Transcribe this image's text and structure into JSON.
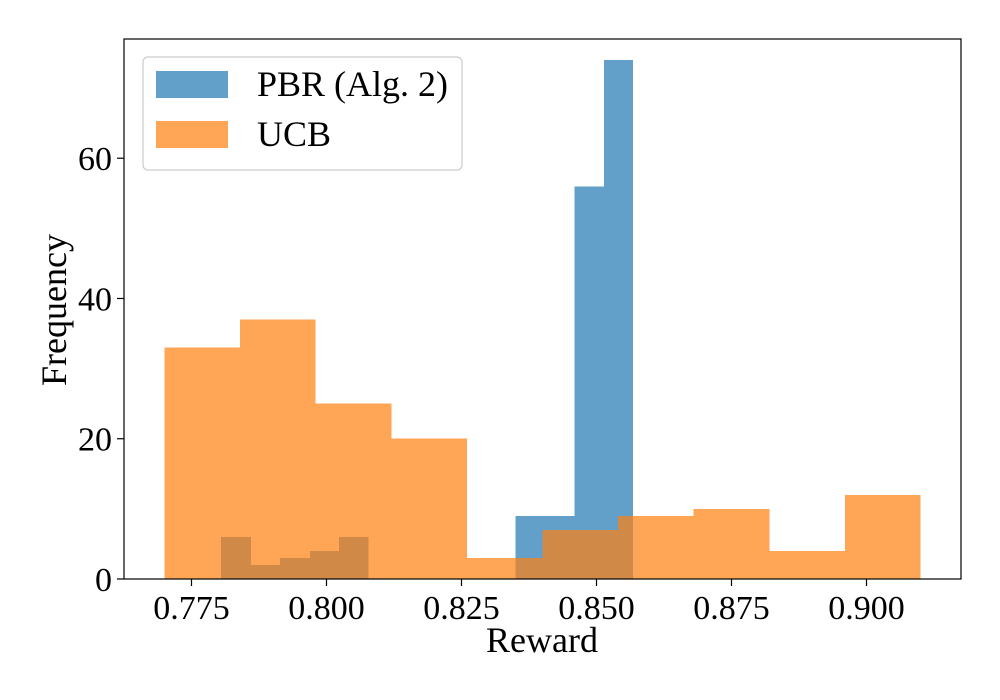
{
  "chart_data": {
    "type": "histogram",
    "title": "",
    "xlabel": "Reward",
    "ylabel": "Frequency",
    "xlim": [
      0.7625,
      0.9175
    ],
    "ylim": [
      0,
      77
    ],
    "x_ticks": [
      0.775,
      0.8,
      0.825,
      0.85,
      0.875,
      0.9
    ],
    "x_tick_labels": [
      "0.775",
      "0.800",
      "0.825",
      "0.850",
      "0.875",
      "0.900"
    ],
    "y_ticks": [
      0,
      20,
      40,
      60
    ],
    "y_tick_labels": [
      "0",
      "20",
      "40",
      "60"
    ],
    "grid": false,
    "legend_position": "top-left",
    "series": [
      {
        "name": "PBR (Alg. 2)",
        "color": "#1f77b4",
        "bin_edges": [
          0.7805,
          0.786,
          0.7914,
          0.7969,
          0.8023,
          0.8078,
          0.8132,
          0.8187,
          0.8241,
          0.8296,
          0.835,
          0.8405,
          0.8459,
          0.8514,
          0.8568,
          0.8623
        ],
        "values": [
          6,
          2,
          3,
          4,
          6,
          0,
          0,
          0,
          0,
          0,
          9,
          9,
          56,
          74,
          0
        ]
      },
      {
        "name": "UCB",
        "color": "#ff7f0e",
        "bin_edges": [
          0.77,
          0.784,
          0.798,
          0.812,
          0.826,
          0.84,
          0.854,
          0.868,
          0.882,
          0.896,
          0.91
        ],
        "values": [
          33,
          37,
          25,
          20,
          3,
          7,
          9,
          10,
          4,
          12
        ]
      }
    ]
  }
}
